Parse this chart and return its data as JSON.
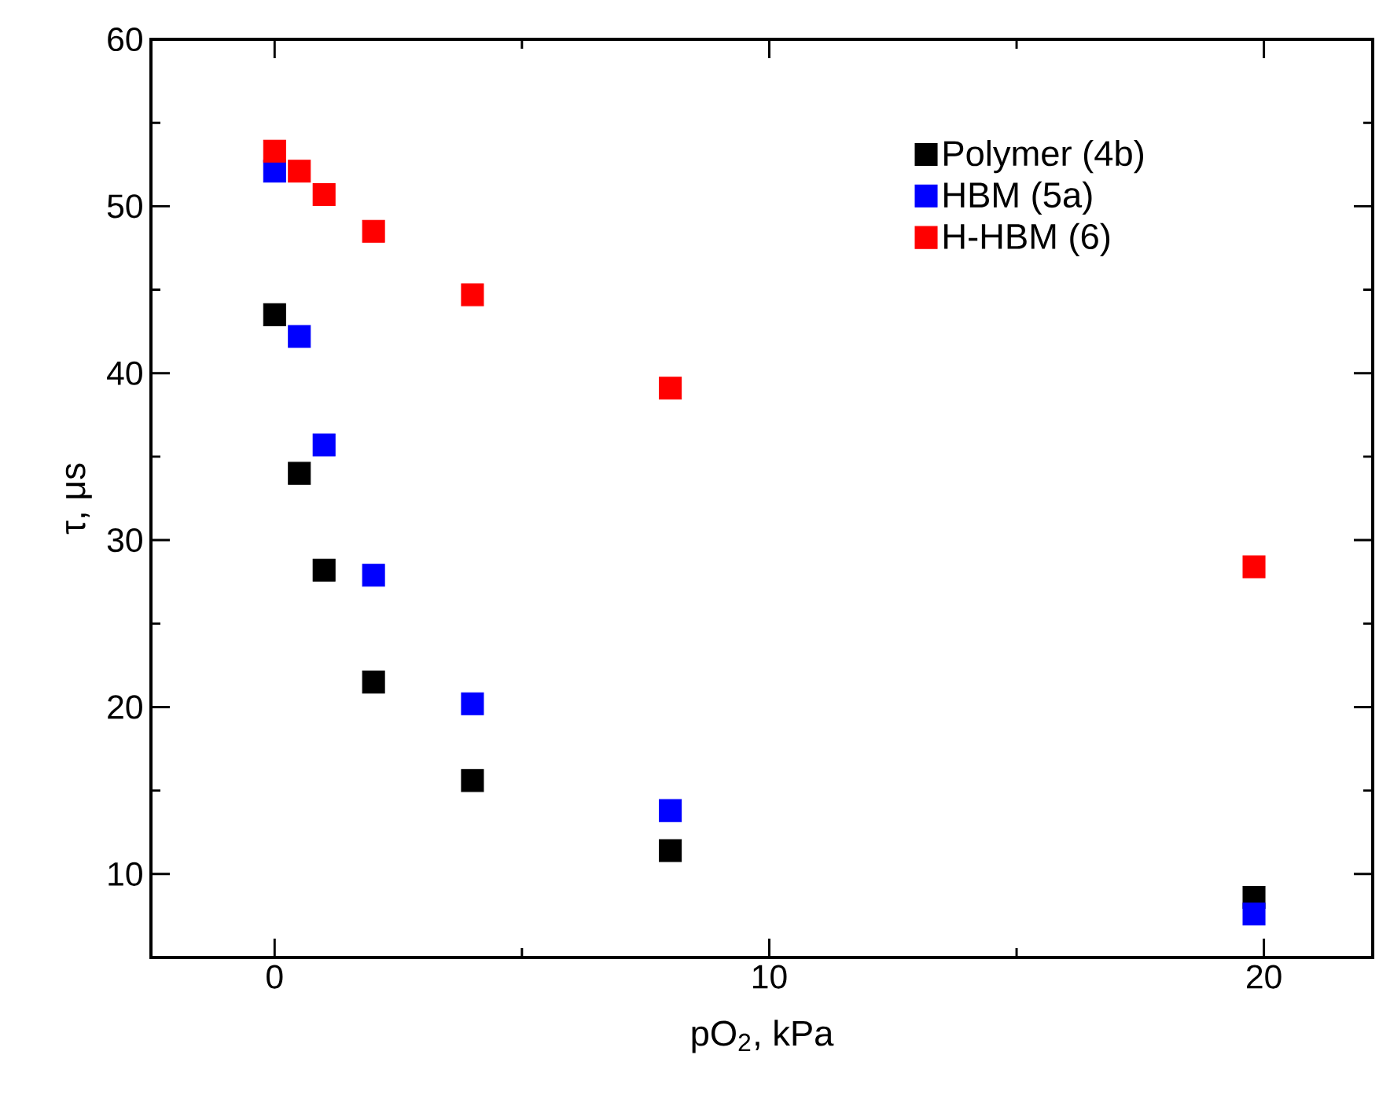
{
  "chart_data": {
    "type": "scatter",
    "xlabel": "pO$_{2}$, kPa",
    "ylabel": "τ, μs",
    "x": [
      0,
      0.5,
      1,
      2,
      4,
      8,
      19.8
    ],
    "series": [
      {
        "name": "Polymer (4b)",
        "color": "#000000",
        "values": [
          43.5,
          34.0,
          28.2,
          21.5,
          15.6,
          11.4,
          8.6
        ]
      },
      {
        "name": "HBM (5a)",
        "color": "#0000ff",
        "values": [
          52.1,
          42.2,
          35.7,
          27.9,
          20.2,
          13.8,
          7.6
        ]
      },
      {
        "name": "H-HBM (6)",
        "color": "#ff0000",
        "values": [
          53.3,
          52.1,
          50.7,
          48.5,
          44.7,
          39.1,
          28.4
        ]
      }
    ],
    "xlim": [
      -2.5,
      22.2
    ],
    "ylim": [
      5,
      60
    ],
    "xticks": [
      0,
      10,
      20
    ],
    "yticks": [
      10,
      20,
      30,
      40,
      50,
      60
    ],
    "marker": "square",
    "legend": "top right",
    "grid": false
  }
}
